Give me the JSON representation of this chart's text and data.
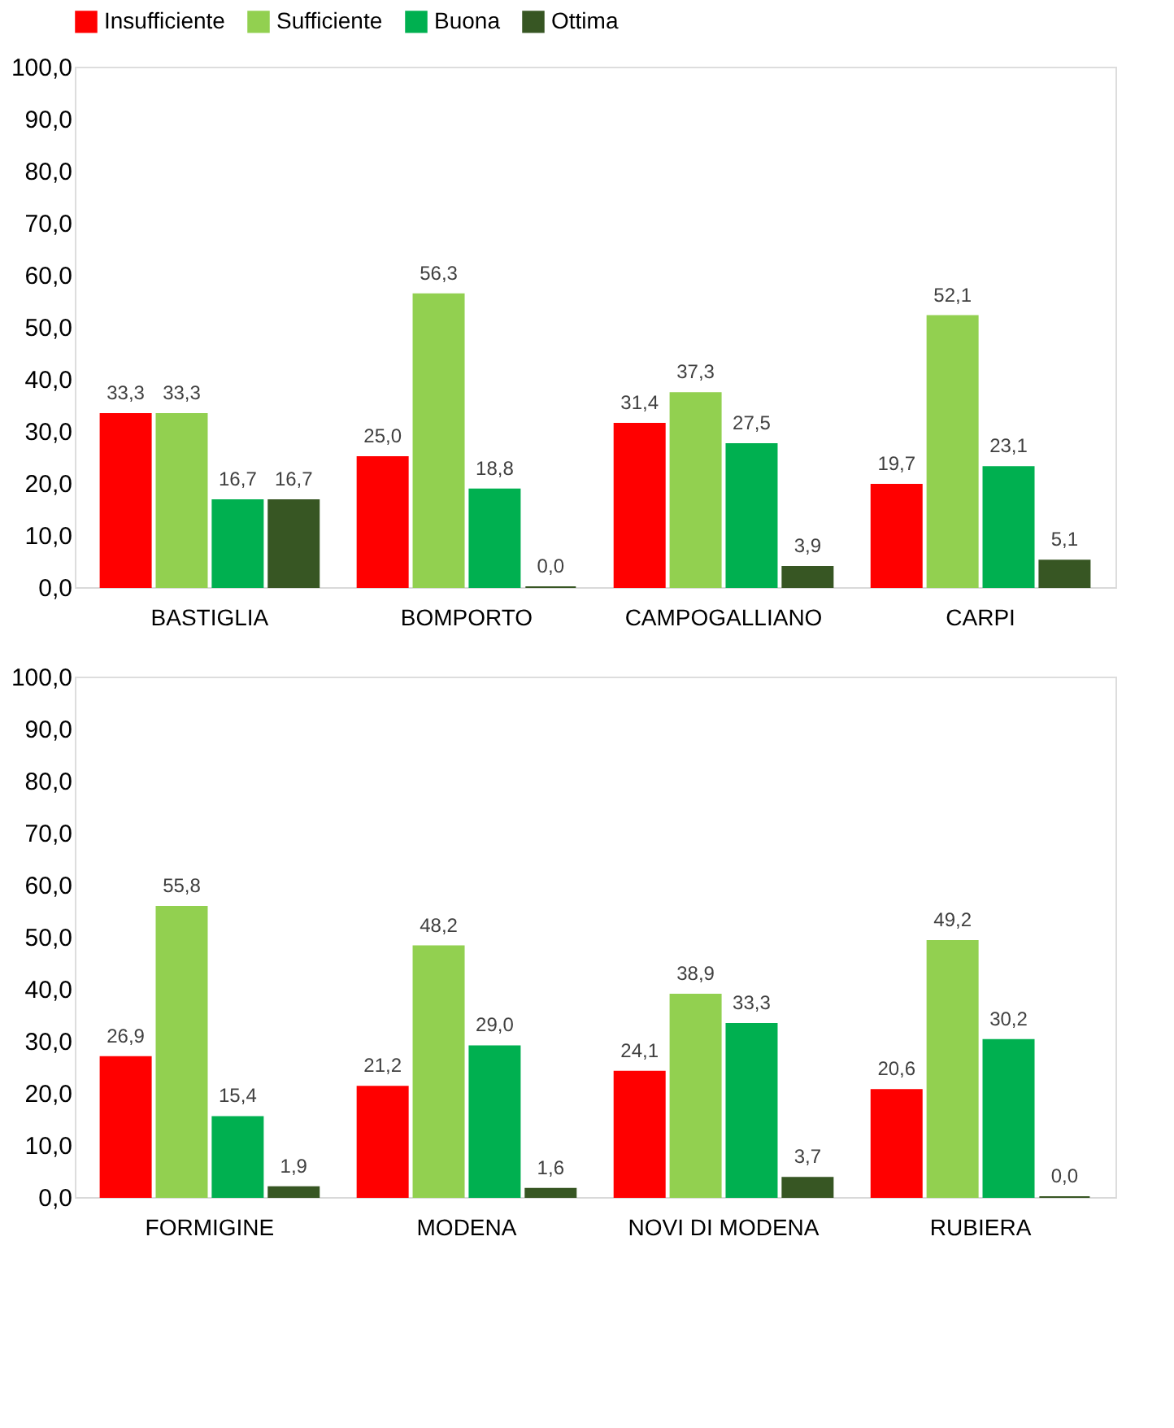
{
  "chart_data": [
    {
      "type": "bar",
      "categories": [
        "BASTIGLIA",
        "BOMPORTO",
        "CAMPOGALLIANO",
        "CARPI"
      ],
      "series": [
        {
          "name": "Insufficiente",
          "color": "#ff0000",
          "values": [
            33.3,
            25.0,
            31.4,
            19.7
          ],
          "value_labels": [
            "33,3",
            "25,0",
            "31,4",
            "19,7"
          ]
        },
        {
          "name": "Sufficiente",
          "color": "#92d050",
          "values": [
            33.3,
            56.3,
            37.3,
            52.1
          ],
          "value_labels": [
            "33,3",
            "56,3",
            "37,3",
            "52,1"
          ]
        },
        {
          "name": "Buona",
          "color": "#00b050",
          "values": [
            16.7,
            18.8,
            27.5,
            23.1
          ],
          "value_labels": [
            "16,7",
            "18,8",
            "27,5",
            "23,1"
          ]
        },
        {
          "name": "Ottima",
          "color": "#375623",
          "values": [
            16.7,
            0.0,
            3.9,
            5.1
          ],
          "value_labels": [
            "16,7",
            "0,0",
            "3,9",
            "5,1"
          ]
        }
      ],
      "ylim": [
        0,
        100
      ],
      "yticks": [
        {
          "value": 0,
          "label": "0,0"
        },
        {
          "value": 10,
          "label": "10,0"
        },
        {
          "value": 20,
          "label": "20,0"
        },
        {
          "value": 30,
          "label": "30,0"
        },
        {
          "value": 40,
          "label": "40,0"
        },
        {
          "value": 50,
          "label": "50,0"
        },
        {
          "value": 60,
          "label": "60,0"
        },
        {
          "value": 70,
          "label": "70,0"
        },
        {
          "value": 80,
          "label": "80,0"
        },
        {
          "value": 90,
          "label": "90,0"
        },
        {
          "value": 100,
          "label": "100,0"
        }
      ],
      "grid": false,
      "legend": "top"
    },
    {
      "type": "bar",
      "categories": [
        "FORMIGINE",
        "MODENA",
        "NOVI DI MODENA",
        "RUBIERA"
      ],
      "series": [
        {
          "color": "#ff0000",
          "values": [
            26.9,
            21.2,
            24.1,
            20.6
          ],
          "value_labels": [
            "26,9",
            "21,2",
            "24,1",
            "20,6"
          ]
        },
        {
          "color": "#92d050",
          "values": [
            55.8,
            48.2,
            38.9,
            49.2
          ],
          "value_labels": [
            "55,8",
            "48,2",
            "38,9",
            "49,2"
          ]
        },
        {
          "color": "#00b050",
          "values": [
            15.4,
            29.0,
            33.3,
            30.2
          ],
          "value_labels": [
            "15,4",
            "29,0",
            "33,3",
            "30,2"
          ]
        },
        {
          "color": "#375623",
          "values": [
            1.9,
            1.6,
            3.7,
            0.0
          ],
          "value_labels": [
            "1,9",
            "1,6",
            "3,7",
            "0,0"
          ]
        }
      ],
      "ylim": [
        0,
        100
      ],
      "yticks": [
        {
          "value": 0,
          "label": "0,0"
        },
        {
          "value": 10,
          "label": "10,0"
        },
        {
          "value": 20,
          "label": "20,0"
        },
        {
          "value": 30,
          "label": "30,0"
        },
        {
          "value": 40,
          "label": "40,0"
        },
        {
          "value": 50,
          "label": "50,0"
        },
        {
          "value": 60,
          "label": "60,0"
        },
        {
          "value": 70,
          "label": "70,0"
        },
        {
          "value": 80,
          "label": "80,0"
        },
        {
          "value": 90,
          "label": "90,0"
        },
        {
          "value": 100,
          "label": "100,0"
        }
      ],
      "grid": false,
      "legend": false
    }
  ]
}
